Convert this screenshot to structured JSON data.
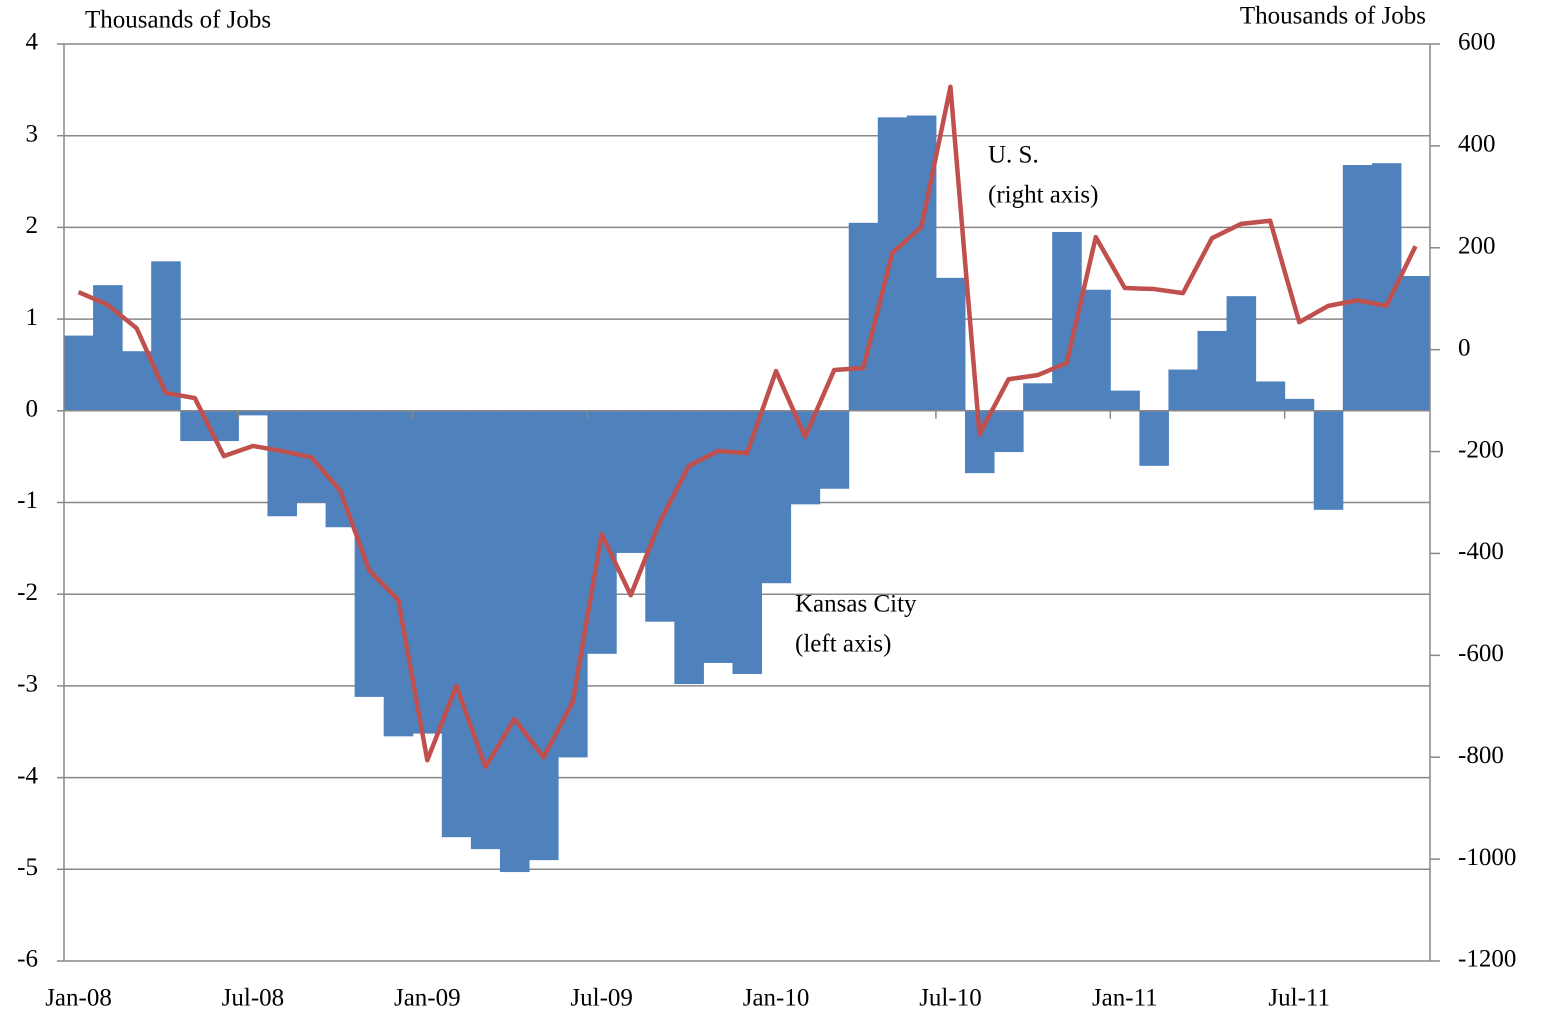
{
  "chart_data": {
    "type": "bar",
    "ylabel": "Thousands of Jobs",
    "y2label": "Thousands of Jobs",
    "categories": [
      "Jan-08",
      null,
      null,
      null,
      null,
      null,
      "Jul-08",
      null,
      null,
      null,
      null,
      null,
      "Jan-09",
      null,
      null,
      null,
      null,
      null,
      "Jul-09",
      null,
      null,
      null,
      null,
      null,
      "Jan-10",
      null,
      null,
      null,
      null,
      null,
      "Jul-10",
      null,
      null,
      null,
      null,
      null,
      "Jan-11",
      null,
      null,
      null,
      null,
      null,
      "Jul-11",
      null,
      null,
      null,
      null
    ],
    "series": [
      {
        "name": "Kansas City",
        "type": "bar",
        "color": "#4f81bd",
        "values": [
          0.82,
          1.37,
          0.65,
          1.63,
          -0.33,
          -0.33,
          -0.05,
          -1.15,
          -1.0,
          -1.27,
          -3.12,
          -3.55,
          -3.52,
          -4.65,
          -4.78,
          -5.03,
          -4.9,
          -3.78,
          -2.65,
          -1.55,
          -2.3,
          -2.98,
          -2.75,
          -2.87,
          -1.88,
          -1.02,
          -0.85,
          2.05,
          3.2,
          3.22,
          1.45,
          -0.68,
          -0.45,
          0.3,
          1.95,
          1.32,
          0.22,
          -0.6,
          0.45,
          0.87,
          1.25,
          0.32,
          0.13,
          -1.08,
          2.68,
          2.7,
          1.47
        ]
      },
      {
        "name": "U. S.",
        "type": "line",
        "axis": "y2",
        "color": "#c0504d",
        "values": [
          113,
          88,
          42,
          -85,
          -95,
          -209,
          -189,
          -199,
          -211,
          -276,
          -433,
          -491,
          -806,
          -660,
          -819,
          -725,
          -800,
          -692,
          -362,
          -482,
          -338,
          -228,
          -199,
          -203,
          -42,
          -171,
          -40,
          -36,
          190,
          241,
          516,
          -166,
          -58,
          -50,
          -26,
          221,
          121,
          119,
          111,
          219,
          247,
          253,
          54,
          86,
          97,
          86,
          203
        ]
      }
    ],
    "annotations": [
      "(left axis)",
      "(right axis)"
    ],
    "ylim": [
      -6,
      4
    ],
    "yticks": [
      -6,
      -5,
      -4,
      -3,
      -2,
      -1,
      0,
      1,
      2,
      3,
      4
    ],
    "y2lim": [
      -1200,
      600
    ],
    "y2ticks": [
      -1200,
      -1000,
      -800,
      -600,
      -400,
      -200,
      0,
      200,
      400,
      600
    ],
    "grid": true
  }
}
